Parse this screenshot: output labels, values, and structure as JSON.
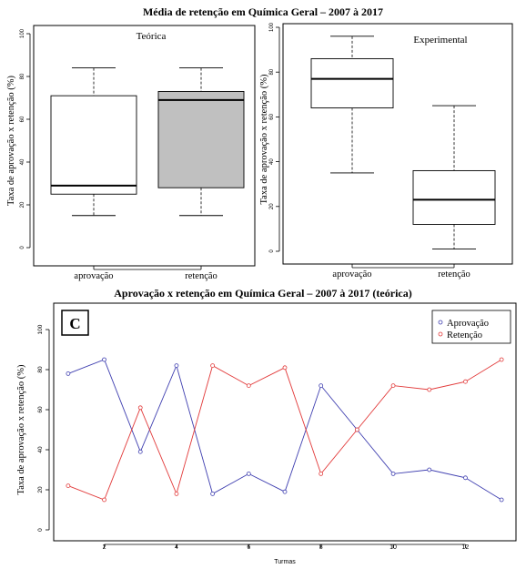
{
  "figure": {
    "top_title": "Média de retenção em Química Geral – 2007 à 2017",
    "bottom_title": "Aprovação x retenção em Química Geral – 2007 à 2017 (teórica)"
  },
  "chart_data": [
    {
      "type": "box",
      "subtitle": "Teórica",
      "ylabel": "Taxa de aprovação x retenção (%)",
      "ylim": [
        0,
        100
      ],
      "yticks": [
        "0",
        "20",
        "40",
        "60",
        "80",
        "100"
      ],
      "categories": [
        "aprovação",
        "retenção"
      ],
      "boxes": [
        {
          "min": 15,
          "q1": 25,
          "median": 29,
          "q3": 71,
          "max": 84,
          "fill": "#ffffff"
        },
        {
          "min": 15,
          "q1": 28,
          "median": 69,
          "q3": 73,
          "max": 84,
          "fill": "#c0c0c0"
        }
      ]
    },
    {
      "type": "box",
      "subtitle": "Experimental",
      "ylabel": "Taxa de aprovação x retenção (%)",
      "ylim": [
        0,
        100
      ],
      "yticks": [
        "0",
        "20",
        "40",
        "60",
        "80",
        "100"
      ],
      "categories": [
        "aprovação",
        "retenção"
      ],
      "boxes": [
        {
          "min": 35,
          "q1": 64,
          "median": 77,
          "q3": 86,
          "max": 96,
          "fill": "#ffffff"
        },
        {
          "min": 1,
          "q1": 12,
          "median": 23,
          "q3": 36,
          "max": 65,
          "fill": "#ffffff"
        }
      ]
    },
    {
      "type": "line",
      "panel_label": "C",
      "xlabel": "Turmas",
      "ylabel": "Taxa de aprovação x retenção (%)",
      "ylim": [
        0,
        110
      ],
      "xlim": [
        0.6,
        13.4
      ],
      "xticks": [
        "2",
        "4",
        "6",
        "8",
        "10",
        "12"
      ],
      "yticks": [
        "0",
        "20",
        "40",
        "60",
        "80",
        "100"
      ],
      "x": [
        1,
        2,
        3,
        4,
        5,
        6,
        7,
        8,
        9,
        10,
        11,
        12,
        13
      ],
      "series": [
        {
          "name": "Aprovação",
          "color": "#3f3fb0",
          "values": [
            78,
            85,
            39,
            82,
            18,
            28,
            19,
            72,
            50,
            28,
            30,
            26,
            15
          ]
        },
        {
          "name": "Retenção",
          "color": "#e23a3a",
          "values": [
            22,
            15,
            61,
            18,
            82,
            72,
            81,
            28,
            50,
            72,
            70,
            74,
            85
          ]
        }
      ]
    }
  ]
}
